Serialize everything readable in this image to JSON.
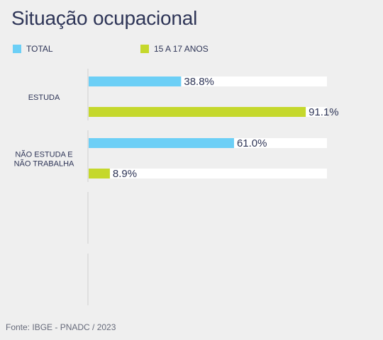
{
  "title": "Situação ocupacional",
  "source": "Fonte: IBGE - PNADC / 2023",
  "colors": {
    "total": "#6ccff6",
    "youth": "#c5d82c",
    "track": "#ffffff",
    "axis": "#cfcfcf"
  },
  "legend": [
    {
      "label": "TOTAL",
      "color": "#6ccff6"
    },
    {
      "label": "15 A 17 ANOS",
      "color": "#c5d82c"
    }
  ],
  "chart_data": {
    "type": "bar",
    "orientation": "horizontal",
    "title": "Situação ocupacional",
    "xlim": [
      0,
      100
    ],
    "grid": false,
    "legend_position": "top-left",
    "categories": [
      [
        "ESTUDA"
      ],
      [
        "NÃO ESTUDA E",
        "NÃO TRABALHA"
      ],
      [],
      []
    ],
    "series": [
      {
        "name": "TOTAL",
        "color": "#6ccff6",
        "values": [
          38.8,
          61.0,
          null,
          null
        ],
        "labels": [
          "38.8%",
          "61.0%",
          null,
          null
        ]
      },
      {
        "name": "15 A 17 ANOS",
        "color": "#c5d82c",
        "values": [
          91.1,
          8.9,
          null,
          null
        ],
        "labels": [
          "91.1%",
          "8.9%",
          null,
          null
        ]
      }
    ]
  }
}
